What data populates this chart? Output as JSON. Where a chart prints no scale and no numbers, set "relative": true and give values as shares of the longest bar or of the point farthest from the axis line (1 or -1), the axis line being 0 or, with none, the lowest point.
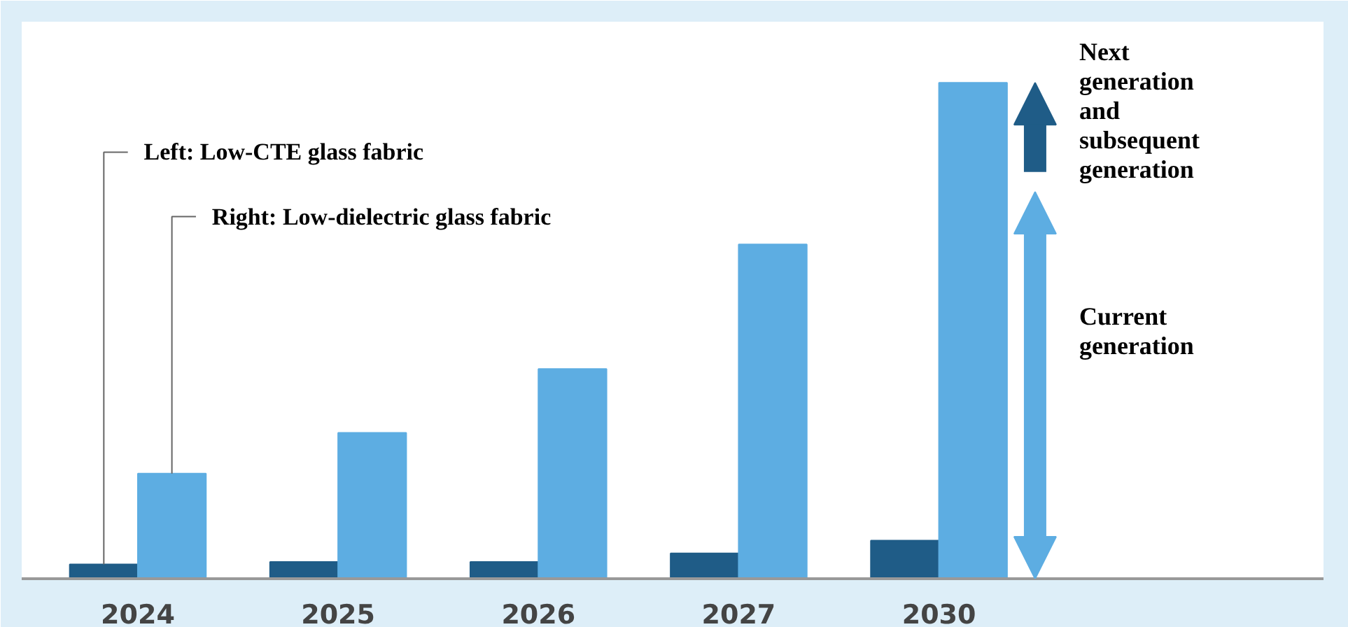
{
  "chart_data": {
    "type": "bar",
    "relative": true,
    "categories": [
      "2024",
      "2025",
      "2026",
      "2027",
      "2030"
    ],
    "series": [
      {
        "name": "Left: Low-CTE glass fabric",
        "color": "#1f5c87",
        "values": [
          0.029,
          0.034,
          0.034,
          0.051,
          0.077
        ]
      },
      {
        "name": "Right: Low-dielectric glass fabric",
        "color": "#5dade2",
        "values": [
          0.212,
          0.294,
          0.423,
          0.674,
          1
        ]
      }
    ],
    "annotations": [
      "Next generation and subsequent generation",
      "Current generation"
    ]
  }
}
